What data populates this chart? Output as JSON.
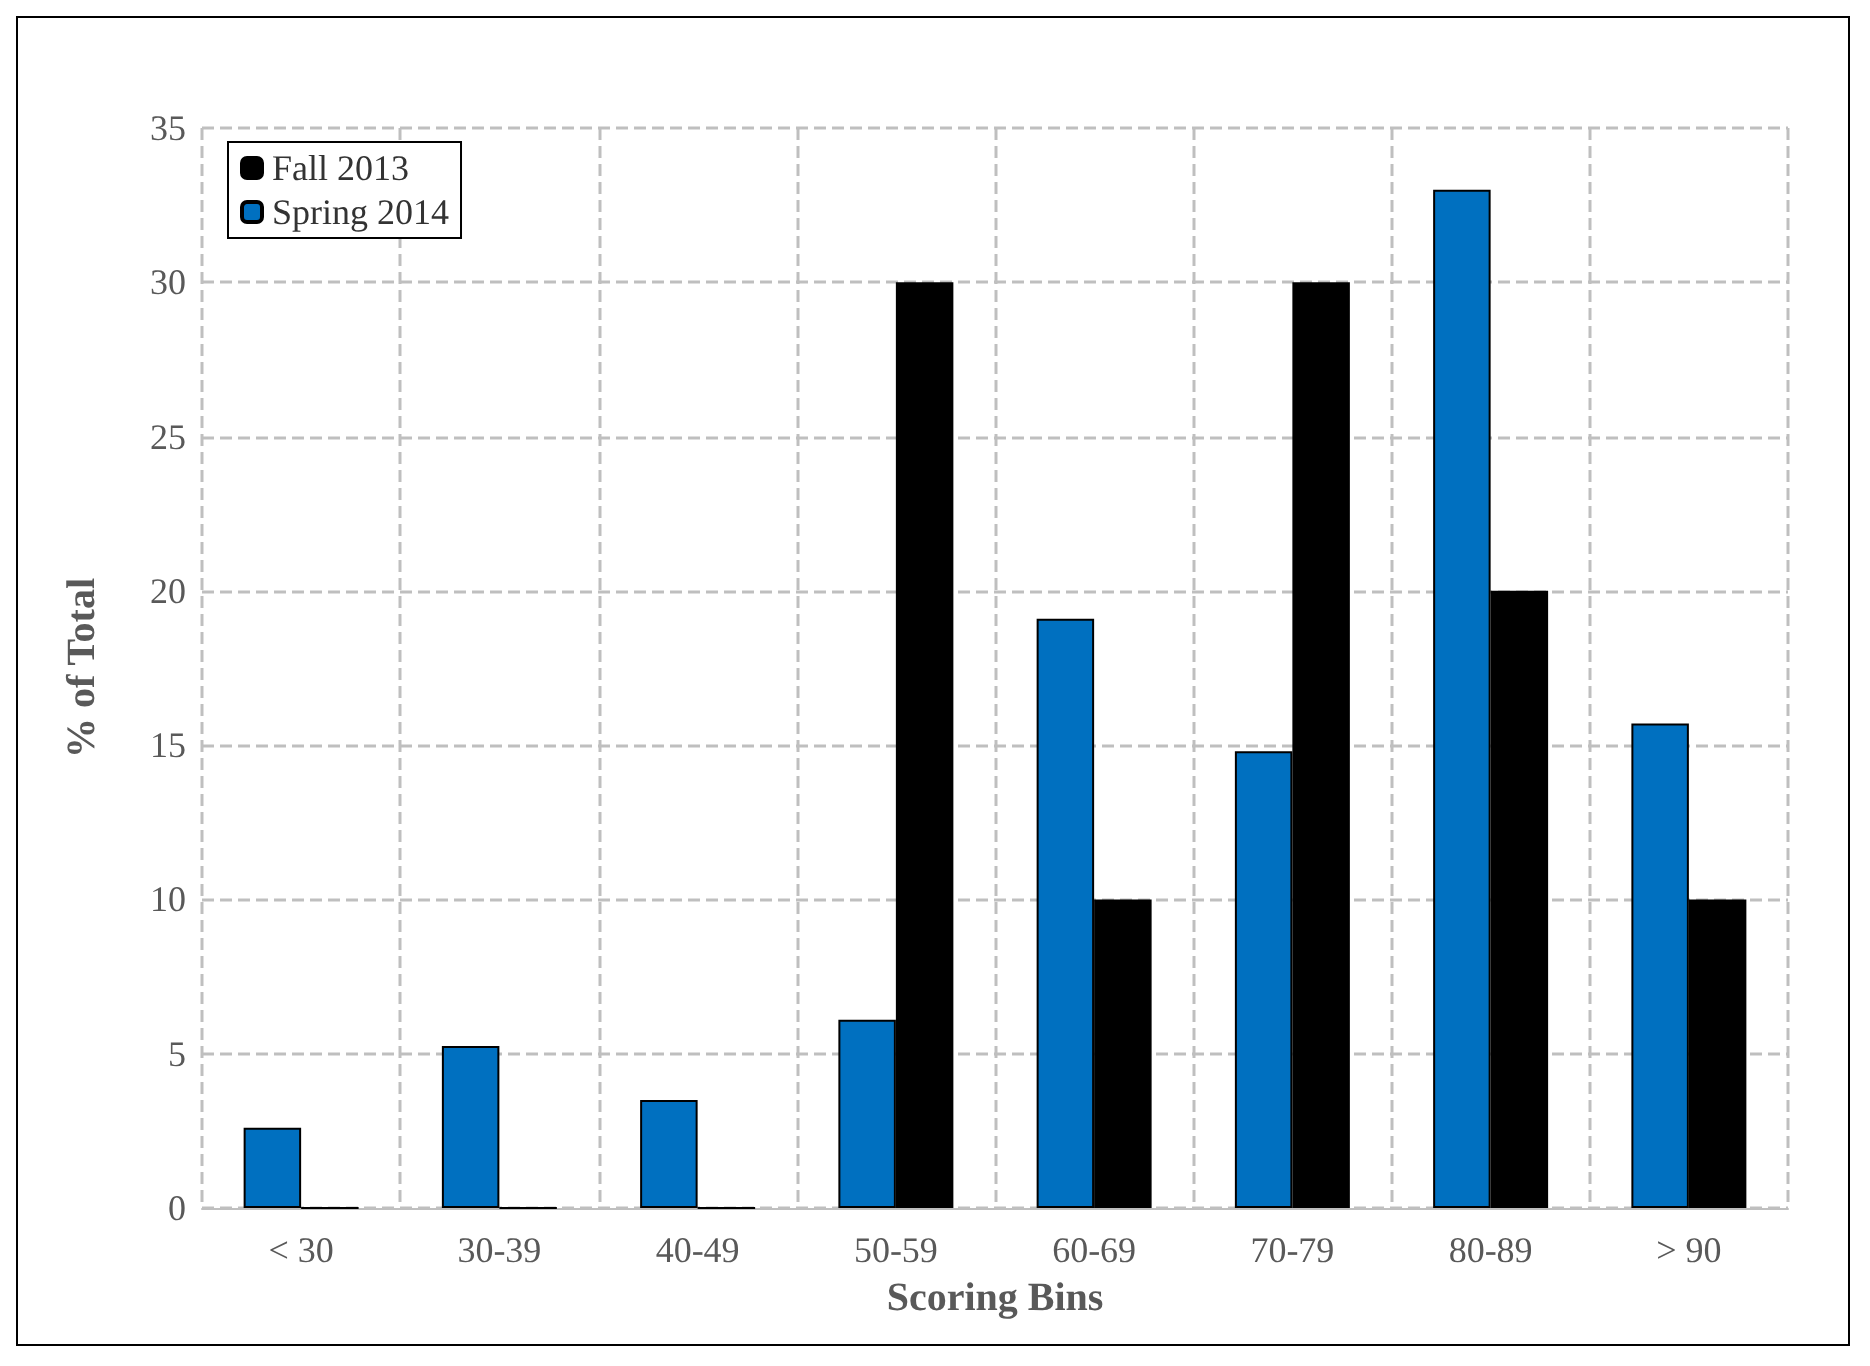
{
  "chart_data": {
    "type": "bar",
    "xlabel": "Scoring Bins",
    "ylabel": "% of Total",
    "categories": [
      "< 30",
      "30-39",
      "40-49",
      "50-59",
      "60-69",
      "70-79",
      "80-89",
      "> 90"
    ],
    "series": [
      {
        "name": "Spring 2014",
        "color": "#0070c0",
        "values": [
          2.6,
          5.25,
          3.5,
          6.1,
          19.1,
          14.8,
          33.0,
          15.7
        ]
      },
      {
        "name": "Fall 2013",
        "color": "#000000",
        "values": [
          0,
          0,
          0,
          30,
          10,
          30,
          20,
          10
        ]
      }
    ],
    "ylim": [
      0,
      35
    ],
    "yticks": [
      0,
      5,
      10,
      15,
      20,
      25,
      30,
      35
    ],
    "grid": true,
    "legend": "top left"
  }
}
